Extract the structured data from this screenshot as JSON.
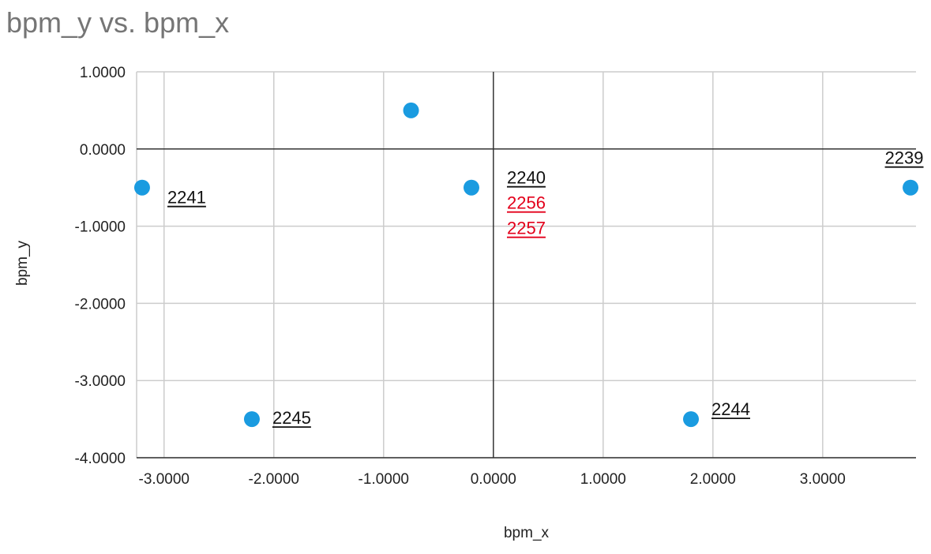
{
  "chart_data": {
    "type": "scatter",
    "title": "bpm_y vs. bpm_x",
    "xlabel": "bpm_x",
    "ylabel": "bpm_y",
    "xlim": [
      -3.25,
      3.85
    ],
    "ylim": [
      -4.0,
      1.0
    ],
    "x_ticks": [
      -3,
      -2,
      -1,
      0,
      1,
      2,
      3
    ],
    "y_ticks": [
      1,
      0,
      -1,
      -2,
      -3,
      -4
    ],
    "x_tick_labels": [
      "-3.0000",
      "-2.0000",
      "-1.0000",
      "0.0000",
      "1.0000",
      "2.0000",
      "3.0000"
    ],
    "y_tick_labels": [
      "1.0000",
      "0.0000",
      "-1.0000",
      "-2.0000",
      "-3.0000",
      "-4.0000"
    ],
    "grid": true,
    "marker_color": "#1a9be0",
    "points": [
      {
        "x": -3.2,
        "y": -0.5
      },
      {
        "x": -0.75,
        "y": 0.5
      },
      {
        "x": -0.2,
        "y": -0.5
      },
      {
        "x": 3.8,
        "y": -0.5
      },
      {
        "x": -2.2,
        "y": -3.5
      },
      {
        "x": 1.8,
        "y": -3.5
      }
    ],
    "annotations": [
      {
        "text": "2241",
        "x": -3.2,
        "y": -0.5,
        "dx": 32,
        "dy": 20,
        "color": "#111111",
        "anchor": "start"
      },
      {
        "text": "2240",
        "x": -0.2,
        "y": -0.5,
        "dx": 45,
        "dy": -5,
        "color": "#111111",
        "anchor": "start"
      },
      {
        "text": "2256",
        "x": -0.2,
        "y": -0.5,
        "dx": 45,
        "dy": 27,
        "color": "#e3001b",
        "anchor": "start"
      },
      {
        "text": "2257",
        "x": -0.2,
        "y": -0.5,
        "dx": 45,
        "dy": 59,
        "color": "#e3001b",
        "anchor": "start"
      },
      {
        "text": "2239",
        "x": 3.8,
        "y": -0.5,
        "dx": -8,
        "dy": -30,
        "color": "#111111",
        "anchor": "middle"
      },
      {
        "text": "2245",
        "x": -2.2,
        "y": -3.5,
        "dx": 26,
        "dy": 6,
        "color": "#111111",
        "anchor": "start"
      },
      {
        "text": "2244",
        "x": 1.8,
        "y": -3.5,
        "dx": 26,
        "dy": -5,
        "color": "#111111",
        "anchor": "start"
      }
    ]
  }
}
